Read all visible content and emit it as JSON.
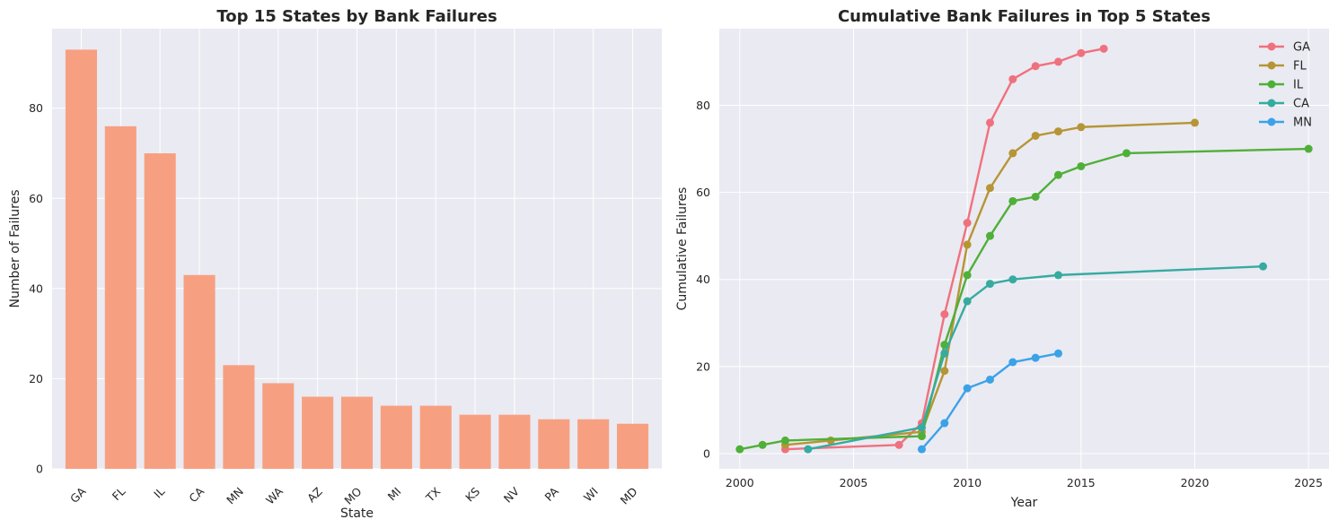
{
  "colors": {
    "panel_bg": "#EAEAF2",
    "grid": "#FFFFFF",
    "bar": "#F7A081",
    "text": "#262626"
  },
  "chart_data": [
    {
      "type": "bar",
      "title": "Top 15 States by Bank Failures",
      "xlabel": "State",
      "ylabel": "Number of Failures",
      "categories": [
        "GA",
        "FL",
        "IL",
        "CA",
        "MN",
        "WA",
        "AZ",
        "MO",
        "MI",
        "TX",
        "KS",
        "NV",
        "PA",
        "WI",
        "MD"
      ],
      "values": [
        93,
        76,
        70,
        43,
        23,
        19,
        16,
        16,
        14,
        14,
        12,
        12,
        11,
        11,
        10
      ],
      "ylim": [
        0,
        97.65
      ],
      "yticks": [
        0,
        20,
        40,
        60,
        80
      ],
      "grid": true
    },
    {
      "type": "line",
      "title": "Cumulative Bank Failures in Top 5 States",
      "xlabel": "Year",
      "ylabel": "Cumulative Failures",
      "xlim": [
        1999.1,
        2025.9
      ],
      "ylim": [
        -3.5,
        97.6
      ],
      "xticks": [
        2000,
        2005,
        2010,
        2015,
        2020,
        2025
      ],
      "yticks": [
        0,
        20,
        40,
        60,
        80
      ],
      "grid": true,
      "legend_position": "top-right",
      "series": [
        {
          "name": "GA",
          "color": "#F0717E",
          "x": [
            2002,
            2007,
            2008,
            2009,
            2010,
            2011,
            2012,
            2013,
            2014,
            2015,
            2016
          ],
          "y": [
            1,
            2,
            7,
            32,
            53,
            76,
            86,
            89,
            90,
            92,
            93
          ]
        },
        {
          "name": "FL",
          "color": "#B69536",
          "x": [
            2002,
            2004,
            2008,
            2009,
            2010,
            2011,
            2012,
            2013,
            2014,
            2015,
            2020
          ],
          "y": [
            2,
            3,
            5,
            19,
            48,
            61,
            69,
            73,
            74,
            75,
            76
          ]
        },
        {
          "name": "IL",
          "color": "#4FB038",
          "x": [
            2000,
            2001,
            2002,
            2008,
            2009,
            2010,
            2011,
            2012,
            2013,
            2014,
            2015,
            2017,
            2025
          ],
          "y": [
            1,
            2,
            3,
            4,
            25,
            41,
            50,
            58,
            59,
            64,
            66,
            69,
            70
          ]
        },
        {
          "name": "CA",
          "color": "#36ABA0",
          "x": [
            2003,
            2008,
            2009,
            2010,
            2011,
            2012,
            2014,
            2023
          ],
          "y": [
            1,
            6,
            23,
            35,
            39,
            40,
            41,
            43
          ]
        },
        {
          "name": "MN",
          "color": "#3BA2E8",
          "x": [
            2008,
            2009,
            2010,
            2011,
            2012,
            2013,
            2014
          ],
          "y": [
            1,
            7,
            15,
            17,
            21,
            22,
            23
          ]
        }
      ]
    }
  ]
}
